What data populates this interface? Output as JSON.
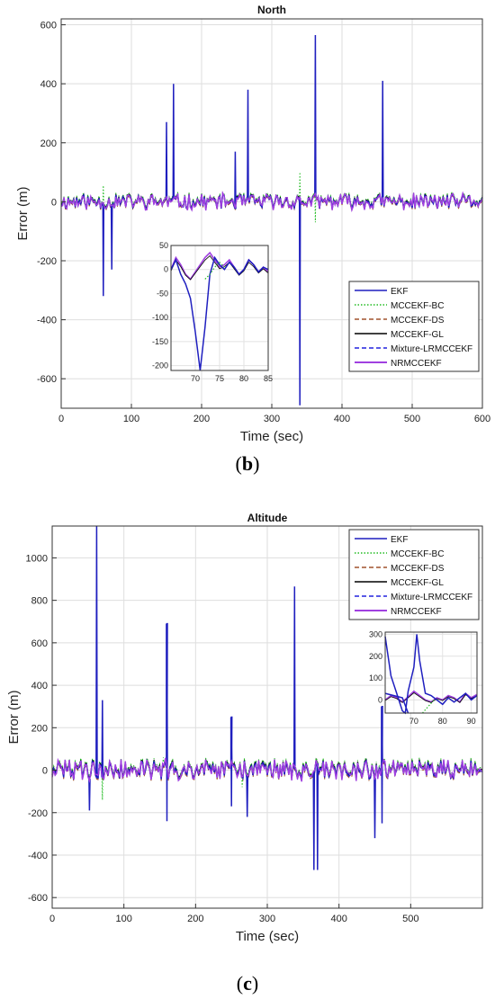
{
  "chart_data": [
    {
      "type": "line",
      "title": "North",
      "xlabel": "Time (sec)",
      "ylabel": "Error (m)",
      "xlim": [
        0,
        600
      ],
      "ylim": [
        -700,
        620
      ],
      "xticks": [
        0,
        100,
        200,
        300,
        400,
        500,
        600
      ],
      "yticks": [
        -600,
        -400,
        -200,
        0,
        200,
        400,
        600
      ],
      "grid": true,
      "legend_position": "bottom-right",
      "series": [
        {
          "name": "EKF",
          "color": "#1f1fbf",
          "dash": "solid",
          "spikes": [
            [
              60,
              -320
            ],
            [
              72,
              -230
            ],
            [
              150,
              270
            ],
            [
              160,
              400
            ],
            [
              248,
              170
            ],
            [
              266,
              380
            ],
            [
              340,
              -690
            ],
            [
              362,
              565
            ],
            [
              458,
              410
            ]
          ]
        },
        {
          "name": "MCCEKF-BC",
          "color": "#22bb22",
          "dash": "dot",
          "spikes": [
            [
              60,
              55
            ],
            [
              340,
              100
            ],
            [
              362,
              -70
            ]
          ]
        },
        {
          "name": "MCCEKF-DS",
          "color": "#a0522d",
          "dash": "dash",
          "spikes": []
        },
        {
          "name": "MCCEKF-GL",
          "color": "#000000",
          "dash": "solid",
          "spikes": []
        },
        {
          "name": "Mixture-LRMCCEKF",
          "color": "#2222dd",
          "dash": "dash",
          "spikes": []
        },
        {
          "name": "NRMCCEKF",
          "color": "#a040e0",
          "dash": "solid",
          "spikes": []
        }
      ],
      "inset": {
        "xlim": [
          65,
          85
        ],
        "ylim": [
          -210,
          50
        ],
        "xticks": [
          70,
          75,
          80,
          85
        ],
        "yticks": [
          -200,
          -150,
          -100,
          -50,
          0,
          50
        ],
        "ekf": [
          [
            65,
            0
          ],
          [
            66,
            20
          ],
          [
            67,
            -10
          ],
          [
            68,
            -30
          ],
          [
            69,
            -60
          ],
          [
            70,
            -130
          ],
          [
            71,
            -210
          ],
          [
            72,
            -120
          ],
          [
            73,
            -10
          ],
          [
            74,
            25
          ],
          [
            75,
            10
          ],
          [
            76,
            0
          ],
          [
            77,
            15
          ],
          [
            78,
            5
          ],
          [
            79,
            -10
          ],
          [
            80,
            0
          ],
          [
            81,
            20
          ],
          [
            82,
            10
          ],
          [
            83,
            -5
          ],
          [
            84,
            5
          ],
          [
            85,
            0
          ]
        ],
        "bc": [
          [
            72,
            -20
          ],
          [
            73,
            -10
          ],
          [
            74,
            5
          ],
          [
            75,
            15
          ],
          [
            76,
            5
          ]
        ],
        "nr": [
          [
            65,
            0
          ],
          [
            66,
            25
          ],
          [
            67,
            10
          ],
          [
            68,
            -10
          ],
          [
            69,
            -20
          ],
          [
            70,
            -5
          ],
          [
            71,
            10
          ],
          [
            72,
            25
          ],
          [
            73,
            35
          ],
          [
            74,
            20
          ],
          [
            75,
            5
          ],
          [
            76,
            10
          ],
          [
            77,
            20
          ],
          [
            78,
            5
          ],
          [
            79,
            -10
          ],
          [
            80,
            0
          ],
          [
            81,
            20
          ],
          [
            82,
            10
          ],
          [
            83,
            -5
          ],
          [
            84,
            5
          ],
          [
            85,
            -5
          ]
        ]
      }
    },
    {
      "type": "line",
      "title": "Altitude",
      "xlabel": "Time (sec)",
      "ylabel": "Error (m)",
      "xlim": [
        0,
        600
      ],
      "ylim": [
        -650,
        1150
      ],
      "xticks": [
        0,
        100,
        200,
        300,
        400,
        500
      ],
      "yticks": [
        -600,
        -400,
        -200,
        0,
        200,
        400,
        600,
        800,
        1000
      ],
      "grid": true,
      "legend_position": "top-right",
      "series": [
        {
          "name": "EKF",
          "color": "#1f1fbf",
          "dash": "solid",
          "spikes": [
            [
              52,
              -190
            ],
            [
              62,
              1150
            ],
            [
              70,
              330
            ],
            [
              160,
              690
            ],
            [
              160,
              -240
            ],
            [
              250,
              250
            ],
            [
              250,
              -170
            ],
            [
              272,
              -220
            ],
            [
              338,
              865
            ],
            [
              365,
              -470
            ],
            [
              370,
              -470
            ],
            [
              450,
              -320
            ],
            [
              460,
              300
            ],
            [
              460,
              -250
            ]
          ]
        },
        {
          "name": "MCCEKF-BC",
          "color": "#22bb22",
          "dash": "dot",
          "spikes": [
            [
              70,
              -140
            ],
            [
              155,
              60
            ],
            [
              265,
              -80
            ],
            [
              460,
              -130
            ]
          ]
        },
        {
          "name": "MCCEKF-DS",
          "color": "#a0522d",
          "dash": "dash",
          "spikes": []
        },
        {
          "name": "MCCEKF-GL",
          "color": "#000000",
          "dash": "solid",
          "spikes": []
        },
        {
          "name": "Mixture-LRMCCEKF",
          "color": "#2222dd",
          "dash": "dash",
          "spikes": []
        },
        {
          "name": "NRMCCEKF",
          "color": "#a040e0",
          "dash": "solid",
          "spikes": []
        }
      ],
      "inset": {
        "xlim": [
          60,
          92
        ],
        "ylim": [
          -60,
          310
        ],
        "xticks": [
          70,
          80,
          90
        ],
        "yticks": [
          0,
          100,
          200,
          300
        ],
        "ekf": [
          [
            60,
            290
          ],
          [
            62,
            110
          ],
          [
            64,
            30
          ],
          [
            66,
            -50
          ],
          [
            67,
            -60
          ],
          [
            68,
            40
          ],
          [
            70,
            150
          ],
          [
            71,
            300
          ],
          [
            72,
            180
          ],
          [
            74,
            30
          ],
          [
            76,
            20
          ],
          [
            78,
            0
          ],
          [
            80,
            -20
          ],
          [
            82,
            10
          ],
          [
            84,
            -10
          ],
          [
            86,
            10
          ],
          [
            88,
            30
          ],
          [
            90,
            0
          ],
          [
            92,
            20
          ]
        ],
        "ekf2": [
          [
            60,
            30
          ],
          [
            66,
            10
          ],
          [
            68,
            -60
          ]
        ],
        "bc": [
          [
            73,
            -60
          ],
          [
            75,
            -30
          ],
          [
            77,
            0
          ]
        ],
        "nr": [
          [
            60,
            0
          ],
          [
            62,
            20
          ],
          [
            64,
            10
          ],
          [
            66,
            -10
          ],
          [
            68,
            15
          ],
          [
            70,
            40
          ],
          [
            72,
            20
          ],
          [
            74,
            0
          ],
          [
            76,
            -10
          ],
          [
            78,
            10
          ],
          [
            80,
            0
          ],
          [
            82,
            20
          ],
          [
            84,
            10
          ],
          [
            86,
            -10
          ],
          [
            88,
            30
          ],
          [
            90,
            10
          ],
          [
            92,
            25
          ]
        ]
      }
    }
  ],
  "captions": {
    "b": {
      "open": "(",
      "letter": "b",
      "close": ")"
    },
    "c": {
      "open": "(",
      "letter": "c",
      "close": ")"
    }
  }
}
